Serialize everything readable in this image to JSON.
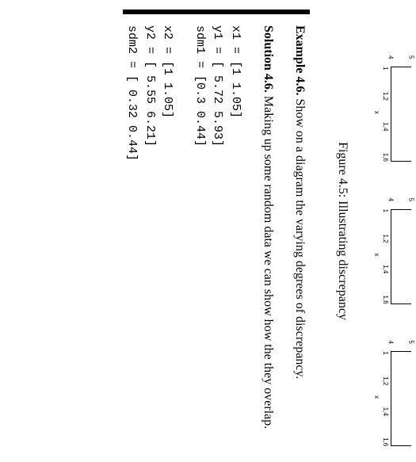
{
  "plots": {
    "yticks": {
      "top": "5",
      "bottom": "4"
    },
    "xticks": [
      "1",
      "1,2",
      "1,4",
      "1,6"
    ],
    "xlabel": "x"
  },
  "caption": "Figure 4.5: Illustrating discrepancy",
  "example": {
    "label": "Example 4.6.",
    "text": "Show on a diagram the varying degrees of discrepancy."
  },
  "solution": {
    "label": "Solution 4.6.",
    "text": "Making up some random data we can show how the they overlap."
  },
  "code1": {
    "l1": "x1 = [1 1.05]",
    "l2": "y1 = [ 5.72 5.93]",
    "l3": "sdm1 = [0.3 0.44]"
  },
  "code2": {
    "l1": "x2 = [1 1.05]",
    "l2": "y2 = [ 5.55 6.21]",
    "l3": "sdm2 = [ 0.32 0.44]"
  }
}
